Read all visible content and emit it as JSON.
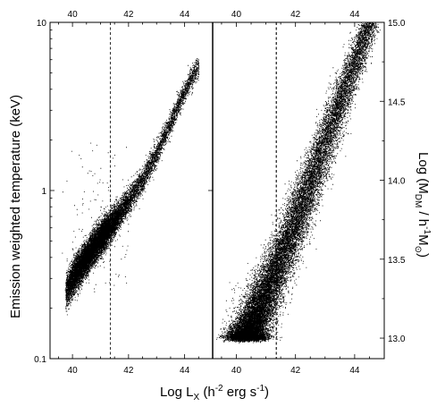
{
  "chart_data": [
    {
      "type": "scatter",
      "panel": "left",
      "title": "",
      "xlabel": "",
      "ylabel": "Emission weighted temperature (keV)",
      "yscale": "log",
      "xlim": [
        39.2,
        45.0
      ],
      "ylim": [
        0.1,
        10
      ],
      "x_ticks": [
        40,
        42,
        44
      ],
      "x_tick_labels": [
        "40",
        "42",
        "44"
      ],
      "y_ticks": [
        0.1,
        1,
        10
      ],
      "y_tick_labels": [
        "0.1",
        "1",
        "10"
      ],
      "top_x_ticks": [
        40,
        42,
        44
      ],
      "top_x_tick_labels": [
        "40",
        "42",
        "44"
      ],
      "grid": false,
      "reference_line": {
        "orientation": "vertical",
        "x": 41.35,
        "style": "dashed"
      },
      "trend": {
        "x": [
          40.0,
          40.5,
          41.0,
          41.5,
          42.0,
          42.5,
          43.0,
          43.5,
          44.0,
          44.4
        ],
        "y": [
          0.3,
          0.4,
          0.52,
          0.66,
          0.87,
          1.15,
          1.65,
          2.5,
          3.9,
          5.2
        ]
      },
      "point_count_estimate": 18000
    },
    {
      "type": "scatter",
      "panel": "right",
      "title": "",
      "xlabel": "",
      "ylabel": "Log (M_DM / h^-1 M_sun)",
      "xlim": [
        39.2,
        45.0
      ],
      "ylim": [
        12.87,
        15.0
      ],
      "x_ticks": [
        40,
        42,
        44
      ],
      "x_tick_labels": [
        "40",
        "42",
        "44"
      ],
      "y_ticks": [
        13.0,
        13.5,
        14.0,
        14.5,
        15.0
      ],
      "y_tick_labels": [
        "13.0",
        "13.5",
        "14.0",
        "14.5",
        "15.0"
      ],
      "top_x_ticks": [
        40,
        42,
        44
      ],
      "top_x_tick_labels": [
        "40",
        "42",
        "44"
      ],
      "grid": false,
      "reference_line": {
        "orientation": "vertical",
        "x": 41.35,
        "style": "dashed"
      },
      "floor": {
        "y": 13.0,
        "x_range": [
          39.8,
          40.9
        ]
      },
      "trend": {
        "x": [
          40.3,
          41.0,
          41.7,
          42.3,
          43.0,
          43.7,
          44.4
        ],
        "y": [
          13.0,
          13.3,
          13.6,
          13.9,
          14.25,
          14.6,
          14.95
        ]
      },
      "point_count_estimate": 24000
    }
  ],
  "shared_xlabel": "Log L_X (h^-2 erg s^-1)",
  "axis_titles": {
    "left_main": "Emission weighted temperature (keV)",
    "right_prefix": "Log (M",
    "right_sub1": "DM",
    "right_mid": " / h",
    "right_sup": "-1",
    "right_mid2": "M",
    "right_sub2": "⊙",
    "right_suffix": ")",
    "bottom_prefix": "Log L",
    "bottom_sub": "X",
    "bottom_mid": " (h",
    "bottom_sup1": "-2",
    "bottom_mid2": " erg s",
    "bottom_sup2": "-1",
    "bottom_suffix": ")"
  },
  "colors": {
    "points": "#000000",
    "axes": "#000000",
    "background": "#ffffff"
  }
}
